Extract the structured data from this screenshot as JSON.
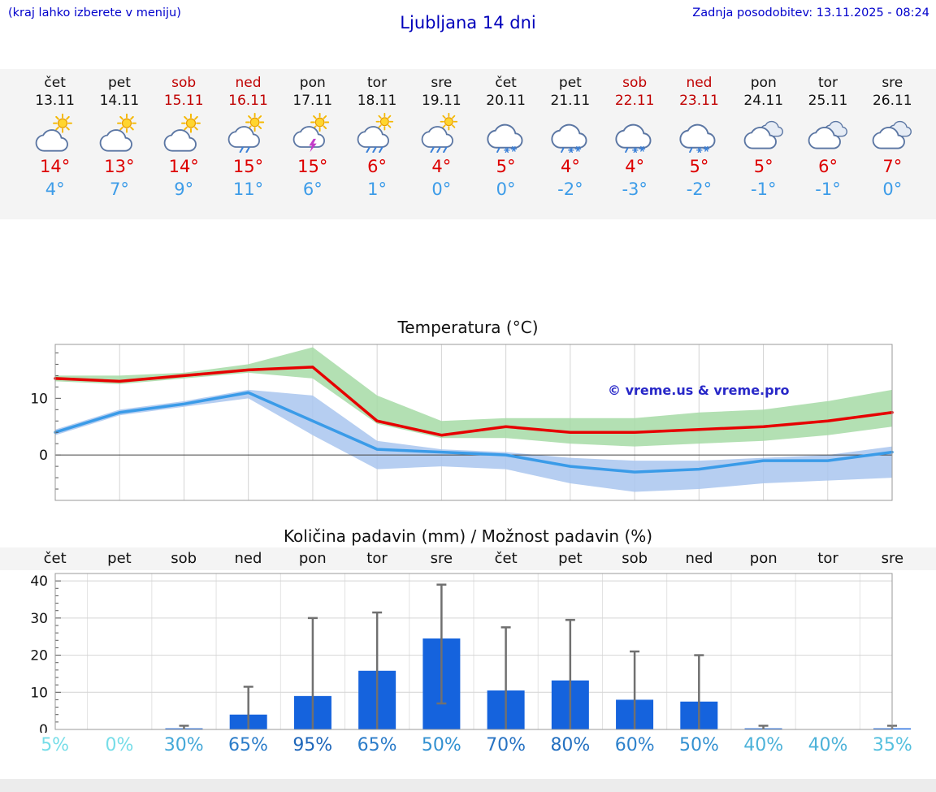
{
  "header": {
    "hint": "(kraj lahko izberete v meniju)",
    "title": "Ljubljana 14 dni",
    "updated": "Zadnja posodobitev: 13.11.2025 - 08:24"
  },
  "forecast": {
    "days": [
      {
        "name": "čet",
        "date": "13.11",
        "weekend": false,
        "icon": "partly-cloudy-icon",
        "high": "14°",
        "low": "4°"
      },
      {
        "name": "pet",
        "date": "14.11",
        "weekend": false,
        "icon": "partly-cloudy-icon",
        "high": "13°",
        "low": "7°"
      },
      {
        "name": "sob",
        "date": "15.11",
        "weekend": true,
        "icon": "partly-cloudy-icon",
        "high": "14°",
        "low": "9°"
      },
      {
        "name": "ned",
        "date": "16.11",
        "weekend": true,
        "icon": "rain-showers-icon",
        "high": "15°",
        "low": "11°"
      },
      {
        "name": "pon",
        "date": "17.11",
        "weekend": false,
        "icon": "thunderstorm-icon",
        "high": "15°",
        "low": "6°"
      },
      {
        "name": "tor",
        "date": "18.11",
        "weekend": false,
        "icon": "heavy-rain-icon",
        "high": "6°",
        "low": "1°"
      },
      {
        "name": "sre",
        "date": "19.11",
        "weekend": false,
        "icon": "heavy-rain-icon",
        "high": "4°",
        "low": "0°"
      },
      {
        "name": "čet",
        "date": "20.11",
        "weekend": false,
        "icon": "sleet-icon",
        "high": "5°",
        "low": "0°"
      },
      {
        "name": "pet",
        "date": "21.11",
        "weekend": false,
        "icon": "sleet-icon",
        "high": "4°",
        "low": "-2°"
      },
      {
        "name": "sob",
        "date": "22.11",
        "weekend": true,
        "icon": "sleet-icon",
        "high": "4°",
        "low": "-3°"
      },
      {
        "name": "ned",
        "date": "23.11",
        "weekend": true,
        "icon": "sleet-icon",
        "high": "5°",
        "low": "-2°"
      },
      {
        "name": "pon",
        "date": "24.11",
        "weekend": false,
        "icon": "cloudy-icon",
        "high": "5°",
        "low": "-1°"
      },
      {
        "name": "tor",
        "date": "25.11",
        "weekend": false,
        "icon": "cloudy-icon",
        "high": "6°",
        "low": "-1°"
      },
      {
        "name": "sre",
        "date": "26.11",
        "weekend": false,
        "icon": "cloudy-icon",
        "high": "7°",
        "low": "0°"
      }
    ]
  },
  "chart_data": [
    {
      "type": "line",
      "title": "Temperatura (°C)",
      "x": [
        "13.11",
        "14.11",
        "15.11",
        "16.11",
        "17.11",
        "18.11",
        "19.11",
        "20.11",
        "21.11",
        "22.11",
        "23.11",
        "24.11",
        "25.11",
        "26.11"
      ],
      "ylim": [
        -8,
        19.5
      ],
      "yticks": [
        0,
        10
      ],
      "grid": "vertical",
      "watermark": "© vreme.us & vreme.pro",
      "series": [
        {
          "name": "max",
          "label": "max temperature",
          "color": "#e60000",
          "values": [
            13.5,
            13,
            14,
            15,
            15.5,
            6,
            3.5,
            5,
            4,
            4,
            4.5,
            5,
            6,
            7.5
          ]
        },
        {
          "name": "min",
          "label": "min temperature",
          "color": "#3a9be8",
          "values": [
            4,
            7.5,
            9,
            11,
            6,
            1,
            0.5,
            0,
            -2,
            -3,
            -2.5,
            -1,
            -1,
            0.5
          ]
        },
        {
          "name": "max_range_upper",
          "values": [
            14,
            14,
            14.5,
            16,
            19,
            10.5,
            6,
            6.5,
            6.5,
            6.5,
            7.5,
            8,
            9.5,
            11.5
          ]
        },
        {
          "name": "max_range_lower",
          "values": [
            13,
            12.5,
            13.5,
            14.5,
            13.5,
            5.5,
            3,
            3,
            2,
            1.5,
            2,
            2.5,
            3.5,
            5
          ]
        },
        {
          "name": "min_range_upper",
          "values": [
            4.5,
            8,
            9.5,
            11.5,
            10.5,
            2.5,
            1,
            0.5,
            -0.5,
            -1,
            -1,
            -0.5,
            0,
            1.5
          ]
        },
        {
          "name": "min_range_lower",
          "values": [
            3.5,
            7,
            8.5,
            10,
            3.5,
            -2.5,
            -2,
            -2.5,
            -5,
            -6.5,
            -6,
            -5,
            -4.5,
            -4
          ]
        }
      ],
      "band_colors": {
        "max": "#a6dba6",
        "min": "#a9c6ef"
      }
    },
    {
      "type": "bar",
      "title": "Količina padavin (mm) / Možnost padavin (%)",
      "categories": [
        "čet",
        "pet",
        "sob",
        "ned",
        "pon",
        "tor",
        "sre",
        "čet",
        "pet",
        "sob",
        "ned",
        "pon",
        "tor",
        "sre"
      ],
      "ylim": [
        0,
        42
      ],
      "yticks": [
        0,
        10,
        20,
        30,
        40
      ],
      "ylabel": "mm",
      "bar_color": "#1563dd",
      "whisker_color": "#707070",
      "values": [
        0,
        0,
        0.3,
        4,
        9,
        15.8,
        24.5,
        10.5,
        13.2,
        8,
        7.5,
        0.3,
        0,
        0.3
      ],
      "whisker_max": [
        0,
        0,
        1,
        11.5,
        30,
        31.5,
        39,
        27.5,
        29.5,
        21,
        20,
        1,
        0,
        1
      ],
      "whisker_min": [
        0,
        0,
        0,
        0,
        0,
        0,
        7,
        0,
        0,
        0,
        0,
        0,
        0,
        0
      ],
      "percent": [
        "5%",
        "0%",
        "30%",
        "65%",
        "95%",
        "65%",
        "50%",
        "70%",
        "80%",
        "60%",
        "50%",
        "40%",
        "40%",
        "35%"
      ],
      "percent_colors": [
        "#76dde8",
        "#76dde8",
        "#44a8d8",
        "#2b7cc9",
        "#1e66ba",
        "#2b7cc9",
        "#3391d1",
        "#2873c3",
        "#2470c0",
        "#2e82cc",
        "#3391d1",
        "#4cb2d9",
        "#4cb2d9",
        "#55c0de"
      ]
    }
  ]
}
